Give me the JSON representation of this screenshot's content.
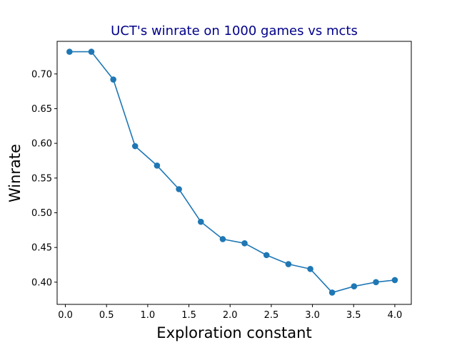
{
  "chart_data": {
    "type": "line",
    "title": "UCT's winrate on 1000 games vs mcts",
    "xlabel": "Exploration constant",
    "ylabel": "Winrate",
    "xlim": [
      -0.1,
      4.2
    ],
    "ylim": [
      0.368,
      0.747
    ],
    "grid": false,
    "x_ticks": [
      0.0,
      0.5,
      1.0,
      1.5,
      2.0,
      2.5,
      3.0,
      3.5,
      4.0
    ],
    "x_tick_labels": [
      "0.0",
      "0.5",
      "1.0",
      "1.5",
      "2.0",
      "2.5",
      "3.0",
      "3.5",
      "4.0"
    ],
    "y_ticks": [
      0.4,
      0.45,
      0.5,
      0.55,
      0.6,
      0.65,
      0.7
    ],
    "y_tick_labels": [
      "0.40",
      "0.45",
      "0.50",
      "0.55",
      "0.60",
      "0.65",
      "0.70"
    ],
    "series": [
      {
        "x": [
          0.05,
          0.316,
          0.582,
          0.847,
          1.113,
          1.379,
          1.645,
          1.911,
          2.176,
          2.442,
          2.708,
          2.974,
          3.239,
          3.505,
          3.771,
          4.0
        ],
        "y": [
          0.732,
          0.732,
          0.692,
          0.596,
          0.568,
          0.534,
          0.487,
          0.462,
          0.456,
          0.439,
          0.426,
          0.419,
          0.385,
          0.394,
          0.4,
          0.403
        ]
      }
    ]
  },
  "colors": {
    "series": "#1f77b4",
    "title": "#00008b",
    "axis": "#000000"
  }
}
